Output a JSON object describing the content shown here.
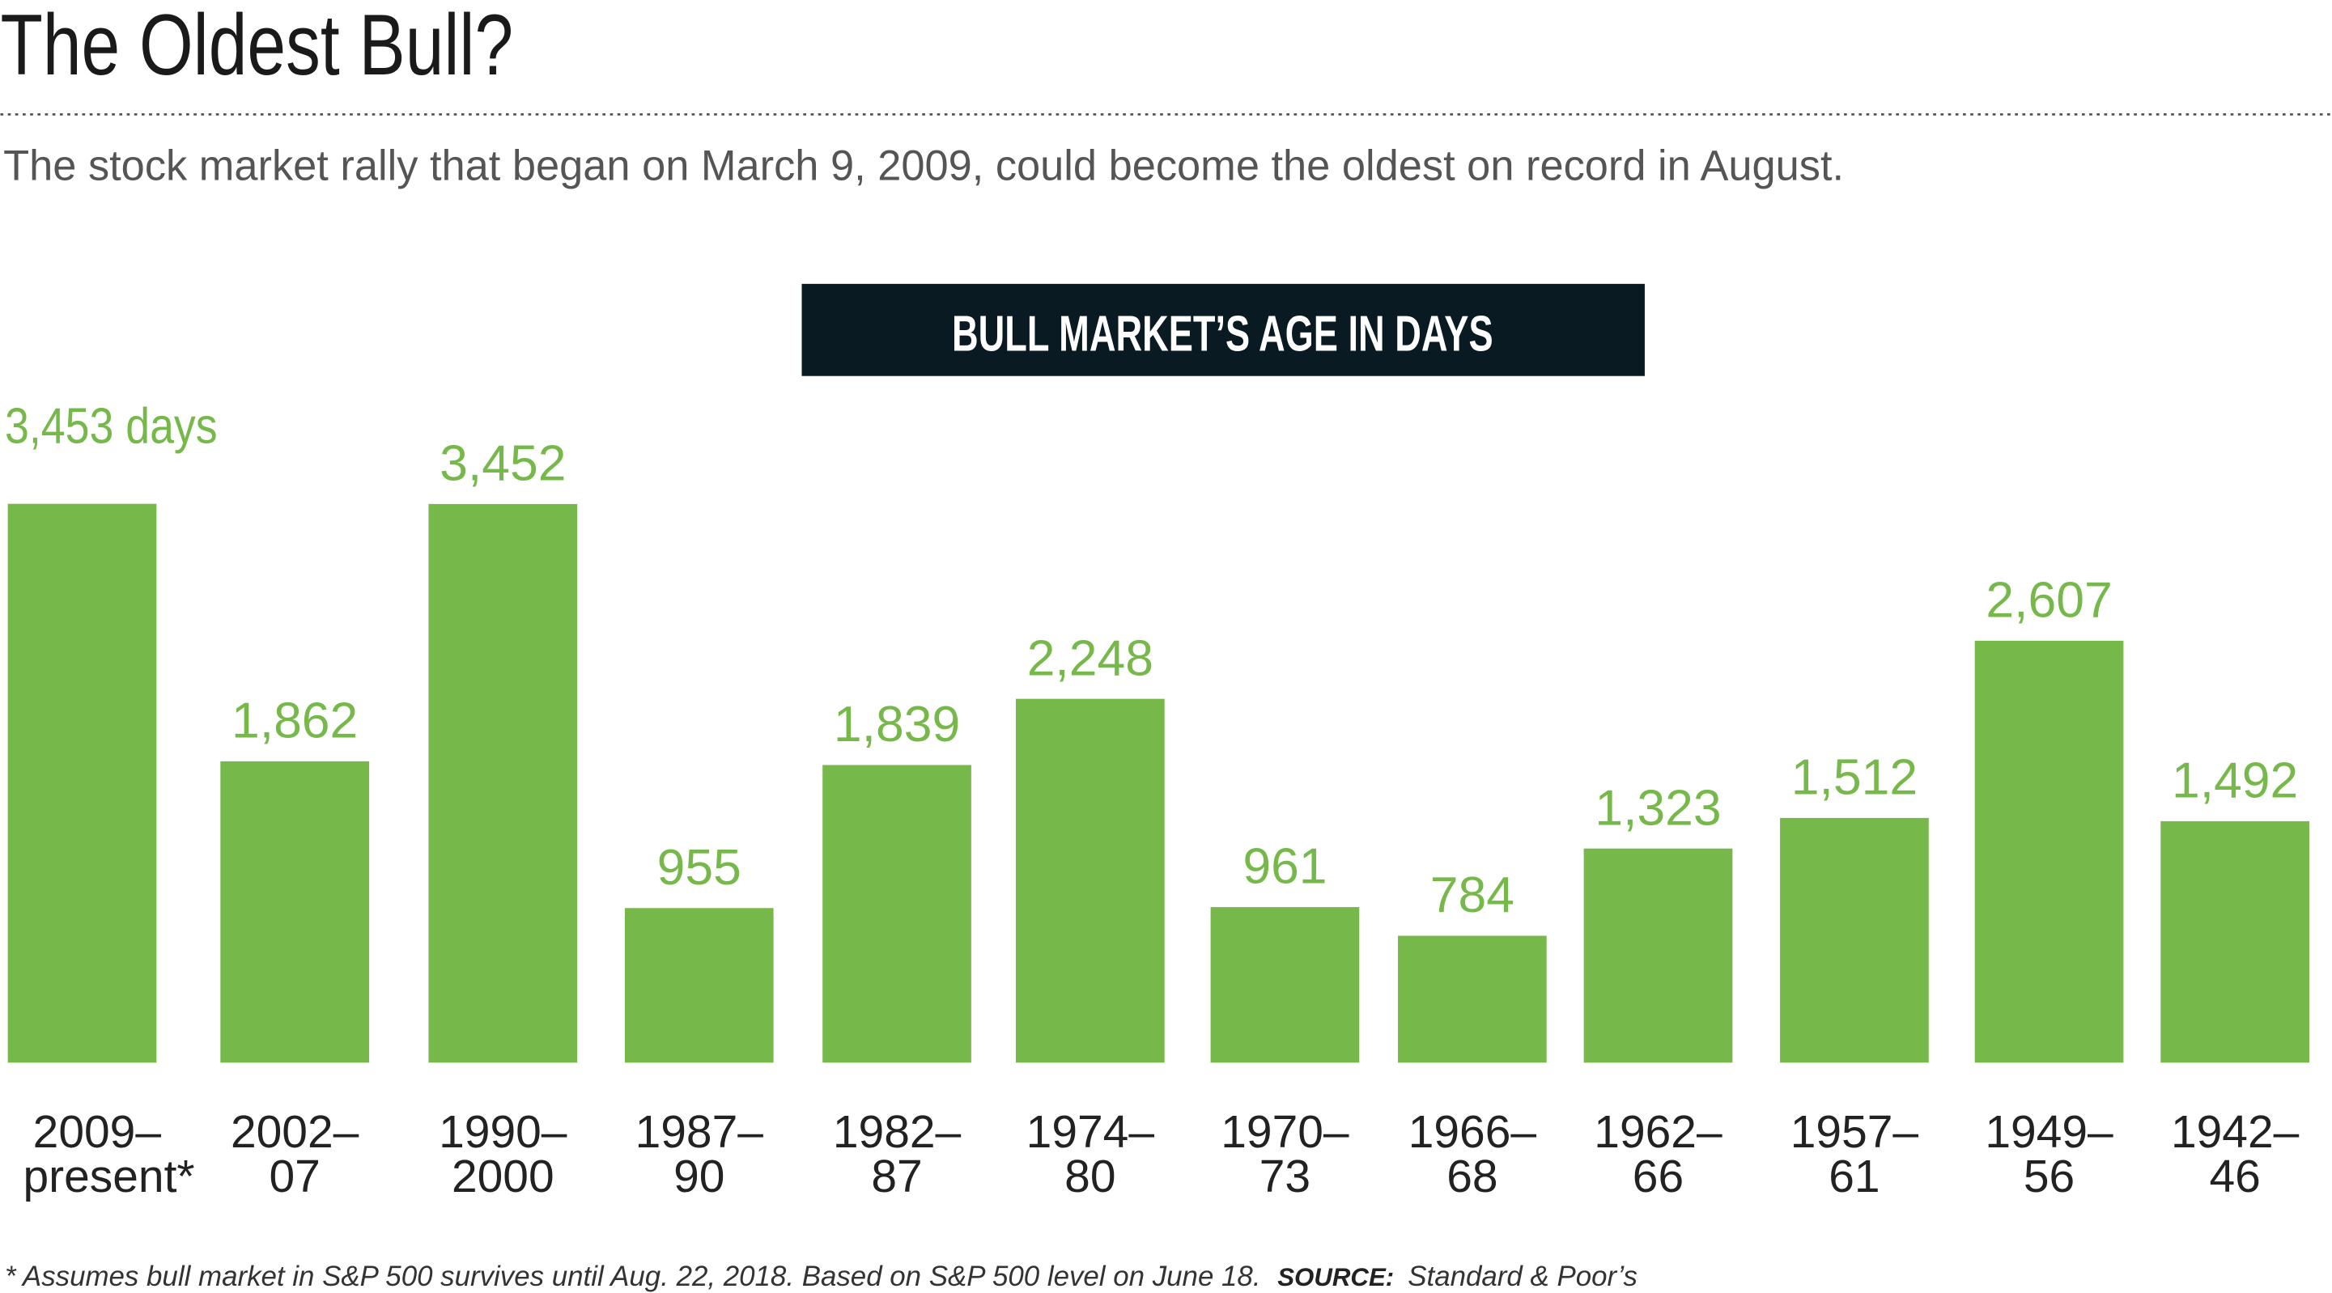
{
  "header": {
    "title": "The Oldest Bull?",
    "subtitle": "The stock market rally that began on March 9, 2009, could become the oldest on record in August."
  },
  "chart_data": {
    "type": "bar",
    "title": "BULL MARKET’S AGE IN DAYS",
    "categories": [
      [
        "2009–",
        "present*"
      ],
      [
        "2002–",
        "07"
      ],
      [
        "1990–",
        "2000"
      ],
      [
        "1987–",
        "90"
      ],
      [
        "1982–",
        "87"
      ],
      [
        "1974–",
        "80"
      ],
      [
        "1970–",
        "73"
      ],
      [
        "1966–",
        "68"
      ],
      [
        "1962–",
        "66"
      ],
      [
        "1957–",
        "61"
      ],
      [
        "1949–",
        "56"
      ],
      [
        "1942–",
        "46"
      ]
    ],
    "values": [
      3453,
      1862,
      3452,
      955,
      1839,
      2248,
      961,
      784,
      1323,
      1512,
      2607,
      1492
    ],
    "value_labels": [
      "3,453 days",
      "1,862",
      "3,452",
      "955",
      "1,839",
      "2,248",
      "961",
      "784",
      "1,323",
      "1,512",
      "2,607",
      "1,492"
    ],
    "ylim": [
      0,
      3453
    ],
    "xlabel": "",
    "ylabel": "",
    "grid": false,
    "bar_color": "#77b84a",
    "title_box_color": "#0a1a22"
  },
  "footer": {
    "note": "* Assumes bull market in S&P 500 survives until Aug. 22, 2018. Based on S&P 500 level on June 18.",
    "source_label": "SOURCE:",
    "source": "Standard & Poor’s"
  }
}
